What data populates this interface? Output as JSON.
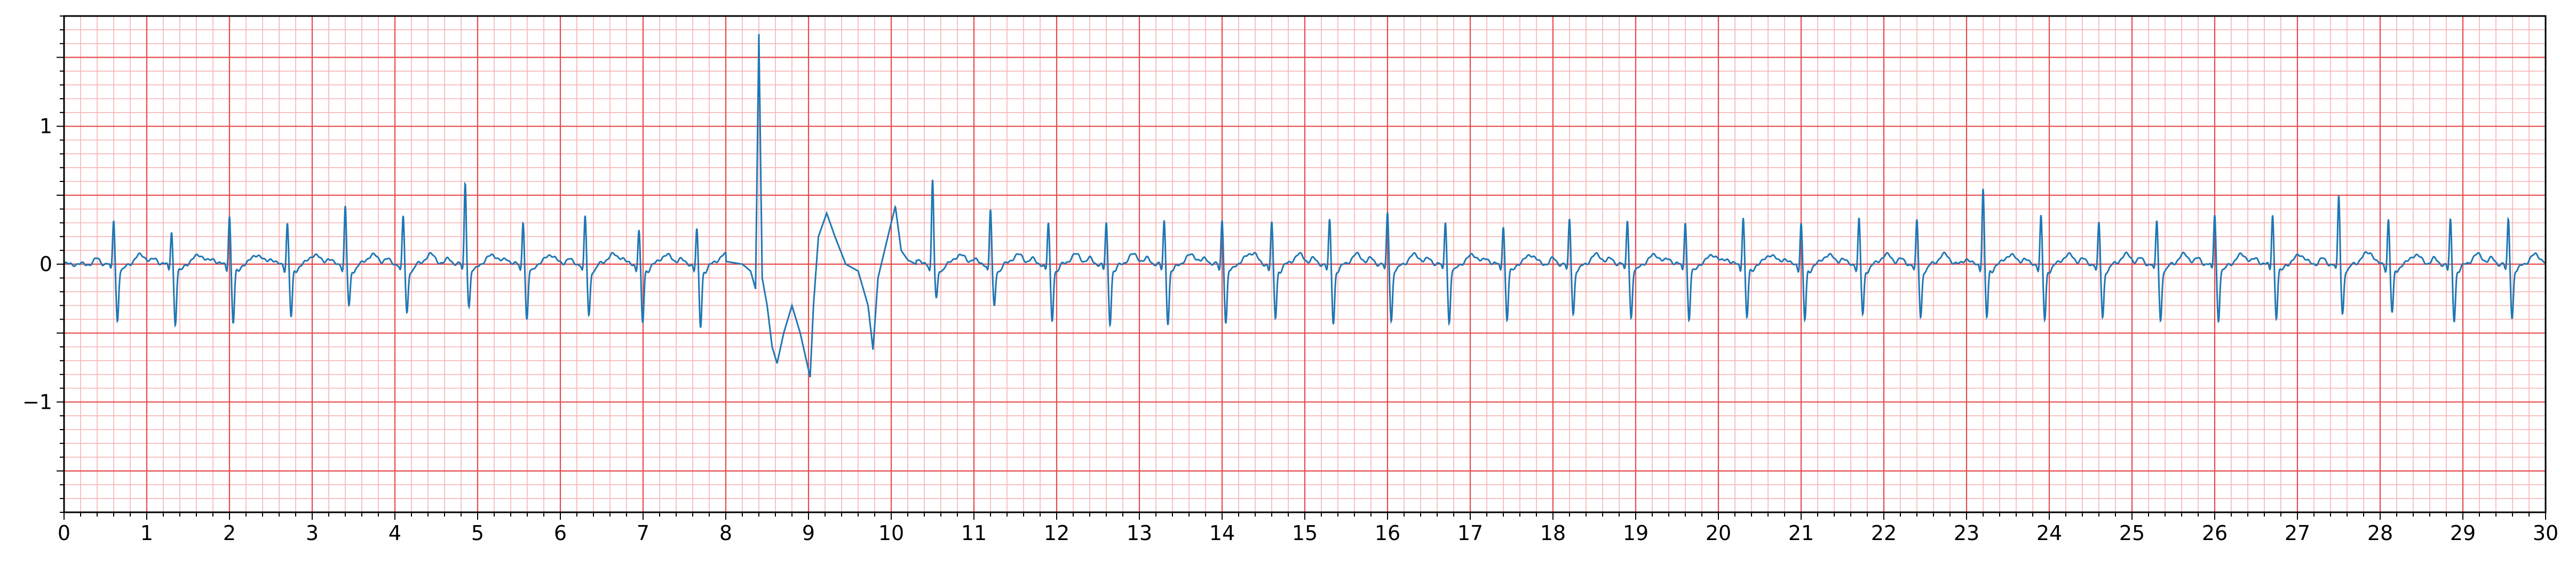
{
  "chart_data": {
    "type": "line",
    "title": "",
    "xlabel": "",
    "ylabel": "",
    "xlim": [
      0,
      30
    ],
    "ylim": [
      -1.8,
      1.8
    ],
    "x_ticks": [
      "0",
      "1",
      "2",
      "3",
      "4",
      "5",
      "6",
      "7",
      "8",
      "9",
      "10",
      "11",
      "12",
      "13",
      "14",
      "15",
      "16",
      "17",
      "18",
      "19",
      "20",
      "21",
      "22",
      "23",
      "24",
      "25",
      "26",
      "27",
      "28",
      "29",
      "30"
    ],
    "y_ticks": [
      {
        "value": 1,
        "label": "1"
      },
      {
        "value": 0,
        "label": "0"
      },
      {
        "value": -1,
        "label": "−1"
      }
    ],
    "grid": true,
    "grid_style": "ecg-paper",
    "colors": {
      "trace": "#1f77b4",
      "major_grid": "#e84a4a",
      "minor_grid": "#f7b3b3",
      "axis": "#000000"
    },
    "beats": [
      {
        "t": 0.6,
        "r": 0.33,
        "s": -0.4
      },
      {
        "t": 1.3,
        "r": 0.25,
        "s": -0.43
      },
      {
        "t": 2.0,
        "r": 0.36,
        "s": -0.42
      },
      {
        "t": 2.7,
        "r": 0.3,
        "s": -0.38
      },
      {
        "t": 3.4,
        "r": 0.42,
        "s": -0.3
      },
      {
        "t": 4.1,
        "r": 0.35,
        "s": -0.35
      },
      {
        "t": 4.85,
        "r": 0.6,
        "s": -0.3
      },
      {
        "t": 5.55,
        "r": 0.32,
        "s": -0.4
      },
      {
        "t": 6.3,
        "r": 0.35,
        "s": -0.37
      },
      {
        "t": 6.95,
        "r": 0.25,
        "s": -0.42
      },
      {
        "t": 7.65,
        "r": 0.25,
        "s": -0.45
      },
      {
        "t": 10.5,
        "r": 0.62,
        "s": -0.25
      },
      {
        "t": 11.2,
        "r": 0.4,
        "s": -0.3
      },
      {
        "t": 11.9,
        "r": 0.3,
        "s": -0.4
      },
      {
        "t": 12.6,
        "r": 0.3,
        "s": -0.42
      },
      {
        "t": 13.3,
        "r": 0.32,
        "s": -0.42
      },
      {
        "t": 14.0,
        "r": 0.33,
        "s": -0.42
      },
      {
        "t": 14.6,
        "r": 0.3,
        "s": -0.38
      },
      {
        "t": 15.3,
        "r": 0.32,
        "s": -0.42
      },
      {
        "t": 16.0,
        "r": 0.38,
        "s": -0.4
      },
      {
        "t": 16.7,
        "r": 0.32,
        "s": -0.42
      },
      {
        "t": 17.4,
        "r": 0.29,
        "s": -0.4
      },
      {
        "t": 18.2,
        "r": 0.33,
        "s": -0.35
      },
      {
        "t": 18.9,
        "r": 0.33,
        "s": -0.38
      },
      {
        "t": 19.6,
        "r": 0.32,
        "s": -0.4
      },
      {
        "t": 20.3,
        "r": 0.35,
        "s": -0.38
      },
      {
        "t": 21.0,
        "r": 0.3,
        "s": -0.4
      },
      {
        "t": 21.7,
        "r": 0.33,
        "s": -0.36
      },
      {
        "t": 22.4,
        "r": 0.32,
        "s": -0.38
      },
      {
        "t": 23.2,
        "r": 0.55,
        "s": -0.38
      },
      {
        "t": 23.9,
        "r": 0.35,
        "s": -0.4
      },
      {
        "t": 24.6,
        "r": 0.3,
        "s": -0.38
      },
      {
        "t": 25.3,
        "r": 0.32,
        "s": -0.4
      },
      {
        "t": 26.0,
        "r": 0.37,
        "s": -0.4
      },
      {
        "t": 26.7,
        "r": 0.37,
        "s": -0.38
      },
      {
        "t": 27.5,
        "r": 0.5,
        "s": -0.35
      },
      {
        "t": 28.1,
        "r": 0.33,
        "s": -0.35
      },
      {
        "t": 28.85,
        "r": 0.32,
        "s": -0.4
      },
      {
        "t": 29.55,
        "r": 0.33,
        "s": -0.38
      }
    ],
    "irregular_segment": {
      "points": [
        [
          8.0,
          0.02
        ],
        [
          8.2,
          0.0
        ],
        [
          8.3,
          -0.05
        ],
        [
          8.36,
          -0.18
        ],
        [
          8.4,
          1.67
        ],
        [
          8.44,
          -0.1
        ],
        [
          8.5,
          -0.3
        ],
        [
          8.56,
          -0.6
        ],
        [
          8.62,
          -0.72
        ],
        [
          8.7,
          -0.5
        ],
        [
          8.8,
          -0.3
        ],
        [
          8.9,
          -0.5
        ],
        [
          9.02,
          -0.82
        ],
        [
          9.06,
          -0.3
        ],
        [
          9.12,
          0.2
        ],
        [
          9.22,
          0.37
        ],
        [
          9.32,
          0.2
        ],
        [
          9.45,
          0.0
        ],
        [
          9.6,
          -0.05
        ],
        [
          9.72,
          -0.3
        ],
        [
          9.78,
          -0.62
        ],
        [
          9.84,
          -0.1
        ],
        [
          9.92,
          0.1
        ],
        [
          10.0,
          0.3
        ],
        [
          10.05,
          0.42
        ],
        [
          10.12,
          0.1
        ],
        [
          10.2,
          0.03
        ],
        [
          10.3,
          0.0
        ]
      ]
    }
  }
}
